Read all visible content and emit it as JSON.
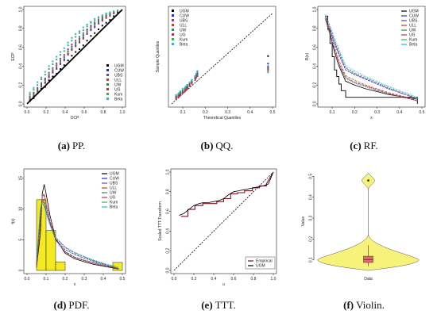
{
  "chart_data": [
    {
      "type": "scatter",
      "caption": {
        "label": "(a)",
        "text": "PP."
      },
      "xlabel": "OCP",
      "ylabel": "ECP",
      "xlim": [
        0,
        1
      ],
      "ylim": [
        0,
        1
      ],
      "xticks": [
        "0.0",
        "0.2",
        "0.4",
        "0.6",
        "0.8",
        "1.0"
      ],
      "yticks": [
        "0.0",
        "0.2",
        "0.4",
        "0.6",
        "0.8",
        "1.0"
      ],
      "legend": {
        "placement": "bottom-right",
        "entries": [
          "UGM",
          "CUW",
          "UBS",
          "ULL",
          "UW",
          "UG",
          "Kum",
          "Beta"
        ]
      },
      "reference_line": {
        "x": [
          0,
          1
        ],
        "y": [
          0,
          1
        ]
      },
      "points_x": [
        0.03,
        0.07,
        0.11,
        0.15,
        0.19,
        0.23,
        0.27,
        0.31,
        0.35,
        0.39,
        0.43,
        0.47,
        0.51,
        0.55,
        0.59,
        0.63,
        0.67,
        0.71,
        0.75,
        0.79,
        0.83,
        0.87,
        0.91,
        0.95
      ],
      "series": [
        {
          "name": "UGM",
          "y": [
            0.03,
            0.06,
            0.11,
            0.16,
            0.18,
            0.25,
            0.29,
            0.32,
            0.37,
            0.41,
            0.46,
            0.51,
            0.55,
            0.58,
            0.62,
            0.67,
            0.72,
            0.75,
            0.79,
            0.83,
            0.86,
            0.89,
            0.93,
            0.97
          ]
        },
        {
          "name": "CUW",
          "y": [
            0.05,
            0.09,
            0.14,
            0.19,
            0.23,
            0.29,
            0.34,
            0.38,
            0.43,
            0.47,
            0.53,
            0.58,
            0.62,
            0.66,
            0.7,
            0.75,
            0.79,
            0.82,
            0.86,
            0.89,
            0.92,
            0.94,
            0.96,
            0.98
          ]
        },
        {
          "name": "UBS",
          "y": [
            0.08,
            0.12,
            0.17,
            0.22,
            0.27,
            0.33,
            0.38,
            0.43,
            0.48,
            0.52,
            0.58,
            0.63,
            0.67,
            0.71,
            0.75,
            0.79,
            0.83,
            0.86,
            0.89,
            0.92,
            0.94,
            0.96,
            0.97,
            0.99
          ]
        },
        {
          "name": "ULL",
          "y": [
            0.07,
            0.11,
            0.16,
            0.21,
            0.26,
            0.31,
            0.36,
            0.41,
            0.46,
            0.5,
            0.56,
            0.61,
            0.65,
            0.69,
            0.73,
            0.78,
            0.82,
            0.85,
            0.88,
            0.91,
            0.93,
            0.95,
            0.97,
            0.99
          ]
        },
        {
          "name": "UW",
          "y": [
            0.06,
            0.1,
            0.15,
            0.2,
            0.25,
            0.3,
            0.35,
            0.4,
            0.45,
            0.49,
            0.55,
            0.6,
            0.64,
            0.68,
            0.72,
            0.77,
            0.81,
            0.84,
            0.87,
            0.9,
            0.92,
            0.95,
            0.97,
            0.98
          ]
        },
        {
          "name": "UG",
          "y": [
            0.04,
            0.08,
            0.13,
            0.18,
            0.22,
            0.28,
            0.33,
            0.37,
            0.42,
            0.46,
            0.52,
            0.57,
            0.61,
            0.65,
            0.69,
            0.74,
            0.78,
            0.81,
            0.85,
            0.88,
            0.91,
            0.93,
            0.96,
            0.98
          ]
        },
        {
          "name": "Kum",
          "y": [
            0.1,
            0.15,
            0.2,
            0.26,
            0.31,
            0.37,
            0.42,
            0.47,
            0.52,
            0.56,
            0.62,
            0.67,
            0.71,
            0.75,
            0.78,
            0.82,
            0.86,
            0.88,
            0.91,
            0.93,
            0.95,
            0.97,
            0.98,
            0.99
          ]
        },
        {
          "name": "Beta",
          "y": [
            0.12,
            0.17,
            0.23,
            0.28,
            0.34,
            0.4,
            0.45,
            0.5,
            0.55,
            0.59,
            0.65,
            0.7,
            0.74,
            0.77,
            0.81,
            0.84,
            0.87,
            0.9,
            0.92,
            0.94,
            0.96,
            0.97,
            0.98,
            0.99
          ]
        }
      ]
    },
    {
      "type": "scatter",
      "caption": {
        "label": "(b)",
        "text": "QQ."
      },
      "xlabel": "Theoretical Quantiles",
      "ylabel": "Sample Quantiles",
      "xlim": [
        0.05,
        0.5
      ],
      "ylim": [
        0,
        0.75
      ],
      "xticks": [
        "0.1",
        "0.2",
        "0.3",
        "0.4",
        "0.5"
      ],
      "legend": {
        "placement": "top-left",
        "entries": [
          "UGM",
          "CUW",
          "UBS",
          "ULL",
          "UW",
          "UG",
          "Kum",
          "Beta"
        ]
      },
      "reference_line": {
        "x": [
          0.05,
          0.5
        ],
        "y": [
          0.0,
          0.72
        ]
      },
      "points_x": [
        0.07,
        0.08,
        0.085,
        0.09,
        0.1,
        0.11,
        0.115,
        0.12,
        0.13,
        0.14,
        0.155,
        0.16,
        0.165,
        0.48
      ],
      "series": [
        {
          "name": "UGM",
          "y": [
            0.05,
            0.06,
            0.07,
            0.08,
            0.09,
            0.11,
            0.12,
            0.13,
            0.15,
            0.17,
            0.2,
            0.22,
            0.24,
            0.38
          ]
        },
        {
          "name": "CUW",
          "y": [
            0.06,
            0.07,
            0.08,
            0.09,
            0.1,
            0.12,
            0.13,
            0.14,
            0.16,
            0.18,
            0.21,
            0.23,
            0.25,
            0.32
          ]
        },
        {
          "name": "UBS",
          "y": [
            0.05,
            0.06,
            0.07,
            0.08,
            0.1,
            0.11,
            0.12,
            0.13,
            0.15,
            0.17,
            0.2,
            0.22,
            0.23,
            0.29
          ]
        },
        {
          "name": "ULL",
          "y": [
            0.04,
            0.05,
            0.06,
            0.07,
            0.09,
            0.1,
            0.11,
            0.12,
            0.14,
            0.16,
            0.19,
            0.21,
            0.22,
            0.27
          ]
        },
        {
          "name": "UW",
          "y": [
            0.06,
            0.07,
            0.08,
            0.09,
            0.1,
            0.12,
            0.13,
            0.14,
            0.16,
            0.18,
            0.21,
            0.23,
            0.25,
            0.3
          ]
        },
        {
          "name": "UG",
          "y": [
            0.05,
            0.06,
            0.07,
            0.08,
            0.1,
            0.11,
            0.12,
            0.13,
            0.15,
            0.17,
            0.2,
            0.22,
            0.24,
            0.28
          ]
        },
        {
          "name": "Kum",
          "y": [
            0.07,
            0.08,
            0.09,
            0.1,
            0.11,
            0.13,
            0.14,
            0.15,
            0.17,
            0.19,
            0.22,
            0.24,
            0.26,
            0.26
          ]
        },
        {
          "name": "Beta",
          "y": [
            0.07,
            0.08,
            0.09,
            0.1,
            0.12,
            0.13,
            0.14,
            0.15,
            0.17,
            0.19,
            0.22,
            0.24,
            0.26,
            0.25
          ]
        }
      ]
    },
    {
      "type": "line",
      "caption": {
        "label": "(c)",
        "text": "RF."
      },
      "xlabel": "x",
      "ylabel": "R(x)",
      "xlim": [
        0.05,
        0.5
      ],
      "ylim": [
        0,
        1
      ],
      "xticks": [
        "0.1",
        "0.2",
        "0.3",
        "0.4",
        "0.5"
      ],
      "yticks": [
        "0.0",
        "0.2",
        "0.4",
        "0.6",
        "0.8",
        "1.0"
      ],
      "legend": {
        "placement": "top-right",
        "entries": [
          "UGM",
          "CUW",
          "UBS",
          "ULL",
          "UW",
          "UG",
          "Kum",
          "Beta"
        ]
      },
      "empirical_step": {
        "x": [
          0.07,
          0.08,
          0.09,
          0.1,
          0.11,
          0.12,
          0.13,
          0.14,
          0.16,
          0.48
        ],
        "y": [
          0.93,
          0.79,
          0.64,
          0.5,
          0.36,
          0.29,
          0.21,
          0.14,
          0.07,
          0.0
        ]
      },
      "x": [
        0.07,
        0.09,
        0.11,
        0.13,
        0.16,
        0.2,
        0.25,
        0.3,
        0.35,
        0.4,
        0.45,
        0.48
      ],
      "series": [
        {
          "name": "UGM",
          "y": [
            0.93,
            0.74,
            0.55,
            0.4,
            0.24,
            0.2,
            0.16,
            0.13,
            0.1,
            0.08,
            0.06,
            0.05
          ]
        },
        {
          "name": "CUW",
          "y": [
            0.9,
            0.78,
            0.64,
            0.52,
            0.36,
            0.31,
            0.26,
            0.21,
            0.16,
            0.12,
            0.08,
            0.05
          ]
        },
        {
          "name": "UBS",
          "y": [
            0.92,
            0.8,
            0.66,
            0.54,
            0.38,
            0.32,
            0.27,
            0.22,
            0.17,
            0.12,
            0.08,
            0.04
          ]
        },
        {
          "name": "ULL",
          "y": [
            0.91,
            0.76,
            0.6,
            0.46,
            0.3,
            0.25,
            0.2,
            0.16,
            0.12,
            0.09,
            0.06,
            0.03
          ]
        },
        {
          "name": "UW",
          "y": [
            0.89,
            0.73,
            0.56,
            0.41,
            0.27,
            0.22,
            0.18,
            0.14,
            0.11,
            0.08,
            0.05,
            0.03
          ]
        },
        {
          "name": "UG",
          "y": [
            0.9,
            0.75,
            0.58,
            0.43,
            0.28,
            0.23,
            0.19,
            0.15,
            0.11,
            0.08,
            0.05,
            0.03
          ]
        },
        {
          "name": "Kum",
          "y": [
            0.94,
            0.82,
            0.68,
            0.56,
            0.39,
            0.33,
            0.28,
            0.23,
            0.18,
            0.13,
            0.09,
            0.05
          ]
        },
        {
          "name": "Beta",
          "y": [
            0.95,
            0.83,
            0.7,
            0.58,
            0.41,
            0.35,
            0.29,
            0.24,
            0.19,
            0.14,
            0.1,
            0.06
          ]
        }
      ]
    },
    {
      "type": "bar",
      "caption": {
        "label": "(d)",
        "text": "PDF."
      },
      "xlabel": "x",
      "ylabel": "f(x)",
      "xlim": [
        0,
        0.5
      ],
      "ylim": [
        0,
        16
      ],
      "xticks": [
        "0.0",
        "0.1",
        "0.2",
        "0.3",
        "0.4",
        "0.5"
      ],
      "yticks": [
        "0",
        "5",
        "10",
        "15"
      ],
      "legend": {
        "placement": "top-right",
        "entries": [
          "UGM",
          "CUW",
          "UBS",
          "ULL",
          "UW",
          "UG",
          "Kum",
          "Beta"
        ]
      },
      "histogram": {
        "bin_edges": [
          0.05,
          0.1,
          0.15,
          0.2,
          0.45,
          0.5
        ],
        "heights": [
          11.5,
          6.5,
          1.4,
          0,
          1.3
        ]
      },
      "x": [
        0.05,
        0.07,
        0.08,
        0.09,
        0.1,
        0.12,
        0.15,
        0.2,
        0.25,
        0.3,
        0.35,
        0.4,
        0.45,
        0.48
      ],
      "series": [
        {
          "name": "UGM",
          "y": [
            0.5,
            6.0,
            12.5,
            14.0,
            12.5,
            9.0,
            5.2,
            2.8,
            1.9,
            1.4,
            1.0,
            0.7,
            0.4,
            0.2
          ]
        },
        {
          "name": "CUW",
          "y": [
            1.2,
            9.5,
            11.8,
            11.0,
            9.8,
            7.6,
            5.0,
            3.4,
            2.6,
            2.0,
            1.5,
            1.0,
            0.6,
            0.3
          ]
        },
        {
          "name": "UBS",
          "y": [
            1.0,
            9.0,
            11.3,
            10.8,
            9.7,
            7.8,
            5.4,
            3.8,
            2.9,
            2.2,
            1.6,
            1.1,
            0.6,
            0.3
          ]
        },
        {
          "name": "ULL",
          "y": [
            0.6,
            7.5,
            12.0,
            12.5,
            11.0,
            8.2,
            5.0,
            3.0,
            2.1,
            1.6,
            1.2,
            0.8,
            0.5,
            0.2
          ]
        },
        {
          "name": "UW",
          "y": [
            0.8,
            8.5,
            12.3,
            12.0,
            10.5,
            7.9,
            4.9,
            3.1,
            2.2,
            1.7,
            1.3,
            0.9,
            0.5,
            0.3
          ]
        },
        {
          "name": "UG",
          "y": [
            0.7,
            8.0,
            12.1,
            12.2,
            10.8,
            8.0,
            5.0,
            3.0,
            2.1,
            1.6,
            1.2,
            0.8,
            0.5,
            0.2
          ]
        },
        {
          "name": "Kum",
          "y": [
            1.5,
            10.0,
            11.0,
            10.4,
            9.5,
            7.5,
            5.3,
            3.7,
            2.8,
            2.2,
            1.6,
            1.1,
            0.7,
            0.4
          ]
        },
        {
          "name": "Beta",
          "y": [
            1.6,
            10.2,
            11.1,
            10.3,
            9.3,
            7.3,
            5.2,
            3.7,
            2.9,
            2.3,
            1.7,
            1.2,
            0.8,
            0.5
          ]
        }
      ]
    },
    {
      "type": "line",
      "caption": {
        "label": "(e)",
        "text": "TTT."
      },
      "xlabel": "u",
      "ylabel": "Scaled TTT-Transform",
      "xlim": [
        0,
        1
      ],
      "ylim": [
        0,
        1
      ],
      "xticks": [
        "0.0",
        "0.2",
        "0.4",
        "0.6",
        "0.8",
        "1.0"
      ],
      "yticks": [
        "0.0",
        "0.2",
        "0.4",
        "0.6",
        "0.8",
        "1.0"
      ],
      "legend": {
        "placement": "bottom-right",
        "entries": [
          "Empirical",
          "UGM"
        ]
      },
      "reference_line": {
        "x": [
          0,
          1
        ],
        "y": [
          0,
          1
        ]
      },
      "series": [
        {
          "name": "Empirical",
          "x": [
            0.07,
            0.14,
            0.14,
            0.21,
            0.21,
            0.29,
            0.29,
            0.36,
            0.36,
            0.43,
            0.43,
            0.5,
            0.5,
            0.57,
            0.57,
            0.64,
            0.64,
            0.71,
            0.71,
            0.79,
            0.79,
            0.86,
            0.86,
            0.93,
            0.93,
            1.0
          ],
          "y": [
            0.55,
            0.55,
            0.62,
            0.62,
            0.66,
            0.66,
            0.68,
            0.68,
            0.68,
            0.68,
            0.7,
            0.7,
            0.73,
            0.73,
            0.78,
            0.78,
            0.79,
            0.79,
            0.81,
            0.81,
            0.84,
            0.84,
            0.86,
            0.86,
            0.88,
            1.0
          ]
        },
        {
          "name": "UGM",
          "x": [
            0.05,
            0.1,
            0.15,
            0.2,
            0.25,
            0.3,
            0.35,
            0.4,
            0.45,
            0.5,
            0.55,
            0.6,
            0.65,
            0.7,
            0.75,
            0.8,
            0.85,
            0.9,
            0.95,
            1.0
          ],
          "y": [
            0.56,
            0.58,
            0.62,
            0.66,
            0.68,
            0.69,
            0.69,
            0.7,
            0.71,
            0.73,
            0.77,
            0.8,
            0.81,
            0.82,
            0.83,
            0.84,
            0.85,
            0.86,
            0.88,
            1.0
          ]
        }
      ]
    },
    {
      "type": "violin",
      "caption": {
        "label": "(f)",
        "text": "Violin."
      },
      "xlabel": "Data",
      "ylabel": "Value",
      "ylim": [
        0.05,
        0.52
      ],
      "yticks": [
        "0.1",
        "0.2",
        "0.3",
        "0.4",
        "0.5"
      ],
      "box": {
        "q1": 0.088,
        "median": 0.102,
        "q3": 0.118,
        "whisker_low": 0.07,
        "whisker_high": 0.17
      },
      "outlier": 0.48
    }
  ],
  "colors": {
    "UGM": "#000000",
    "CUW": "#1f2dd8",
    "UBS": "#7b3fa0",
    "ULL": "#c23b22",
    "UW": "#2e8b57",
    "UG": "#b03060",
    "Kum": "#33b24a",
    "Beta": "#22b8c8",
    "Empirical": "#7a1020",
    "hist_fill": "#f3ea22",
    "violin_fill": "#f6f27a",
    "box_fill": "#e36a6a",
    "ref_line": "#000000"
  }
}
